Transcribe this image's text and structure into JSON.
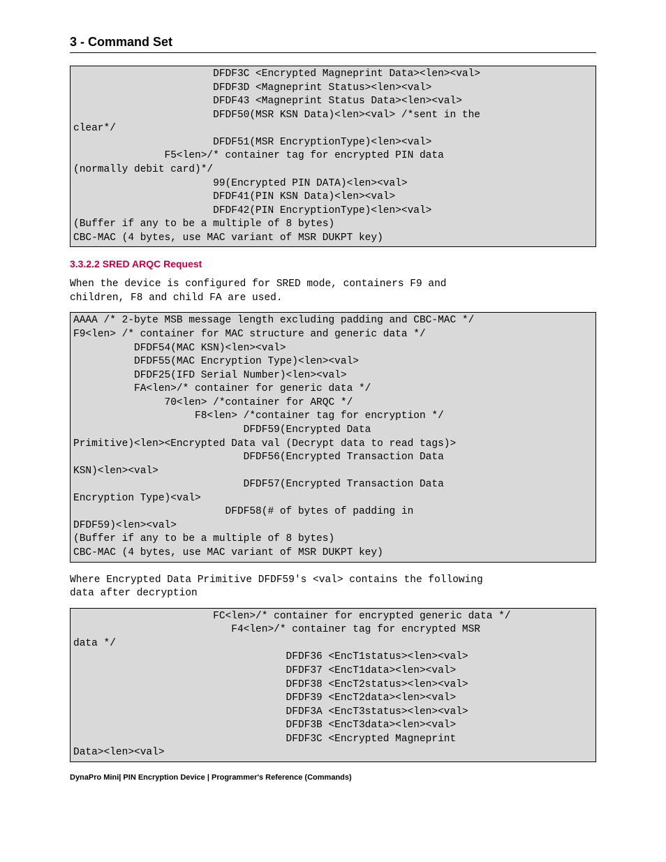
{
  "header": {
    "title": "3 - Command Set"
  },
  "code1": "                       DFDF3C <Encrypted Magneprint Data><len><val>\n                       DFDF3D <Magneprint Status><len><val>\n                       DFDF43 <Magneprint Status Data><len><val>\n                       DFDF50(MSR KSN Data)<len><val> /*sent in the\nclear*/\n                       DFDF51(MSR EncryptionType)<len><val>\n               F5<len>/* container tag for encrypted PIN data\n(normally debit card)*/\n                       99(Encrypted PIN DATA)<len><val>\n                       DFDF41(PIN KSN Data)<len><val>\n                       DFDF42(PIN EncryptionType)<len><val>\n(Buffer if any to be a multiple of 8 bytes)\nCBC-MAC (4 bytes, use MAC variant of MSR DUKPT key)",
  "subsection": {
    "number": "3.3.2.2",
    "title": "SRED ARQC Request"
  },
  "para1": "When the device is configured for SRED mode, containers F9 and\nchildren, F8 and child FA are used.",
  "code2": "AAAA /* 2-byte MSB message length excluding padding and CBC-MAC */\nF9<len> /* container for MAC structure and generic data */\n          DFDF54(MAC KSN)<len><val>\n          DFDF55(MAC Encryption Type)<len><val>\n          DFDF25(IFD Serial Number)<len><val>\n          FA<len>/* container for generic data */\n               70<len> /*container for ARQC */\n                    F8<len> /*container tag for encryption */\n                            DFDF59(Encrypted Data\nPrimitive)<len><Encrypted Data val (Decrypt data to read tags)>\n                            DFDF56(Encrypted Transaction Data\nKSN)<len><val>\n                            DFDF57(Encrypted Transaction Data\nEncryption Type)<val>\n                         DFDF58(# of bytes of padding in\nDFDF59)<len><val>\n(Buffer if any to be a multiple of 8 bytes)\nCBC-MAC (4 bytes, use MAC variant of MSR DUKPT key)",
  "para2": "Where Encrypted Data Primitive DFDF59's <val> contains the following\ndata after decryption",
  "code3": "                       FC<len>/* container for encrypted generic data */\n                          F4<len>/* container tag for encrypted MSR\ndata */\n                                   DFDF36 <EncT1status><len><val>\n                                   DFDF37 <EncT1data><len><val>\n                                   DFDF38 <EncT2status><len><val>\n                                   DFDF39 <EncT2data><len><val>\n                                   DFDF3A <EncT3status><len><val>\n                                   DFDF3B <EncT3data><len><val>\n                                   DFDF3C <Encrypted Magneprint\nData><len><val>",
  "footer": "DynaPro Mini| PIN Encryption Device | Programmer's Reference (Commands)"
}
